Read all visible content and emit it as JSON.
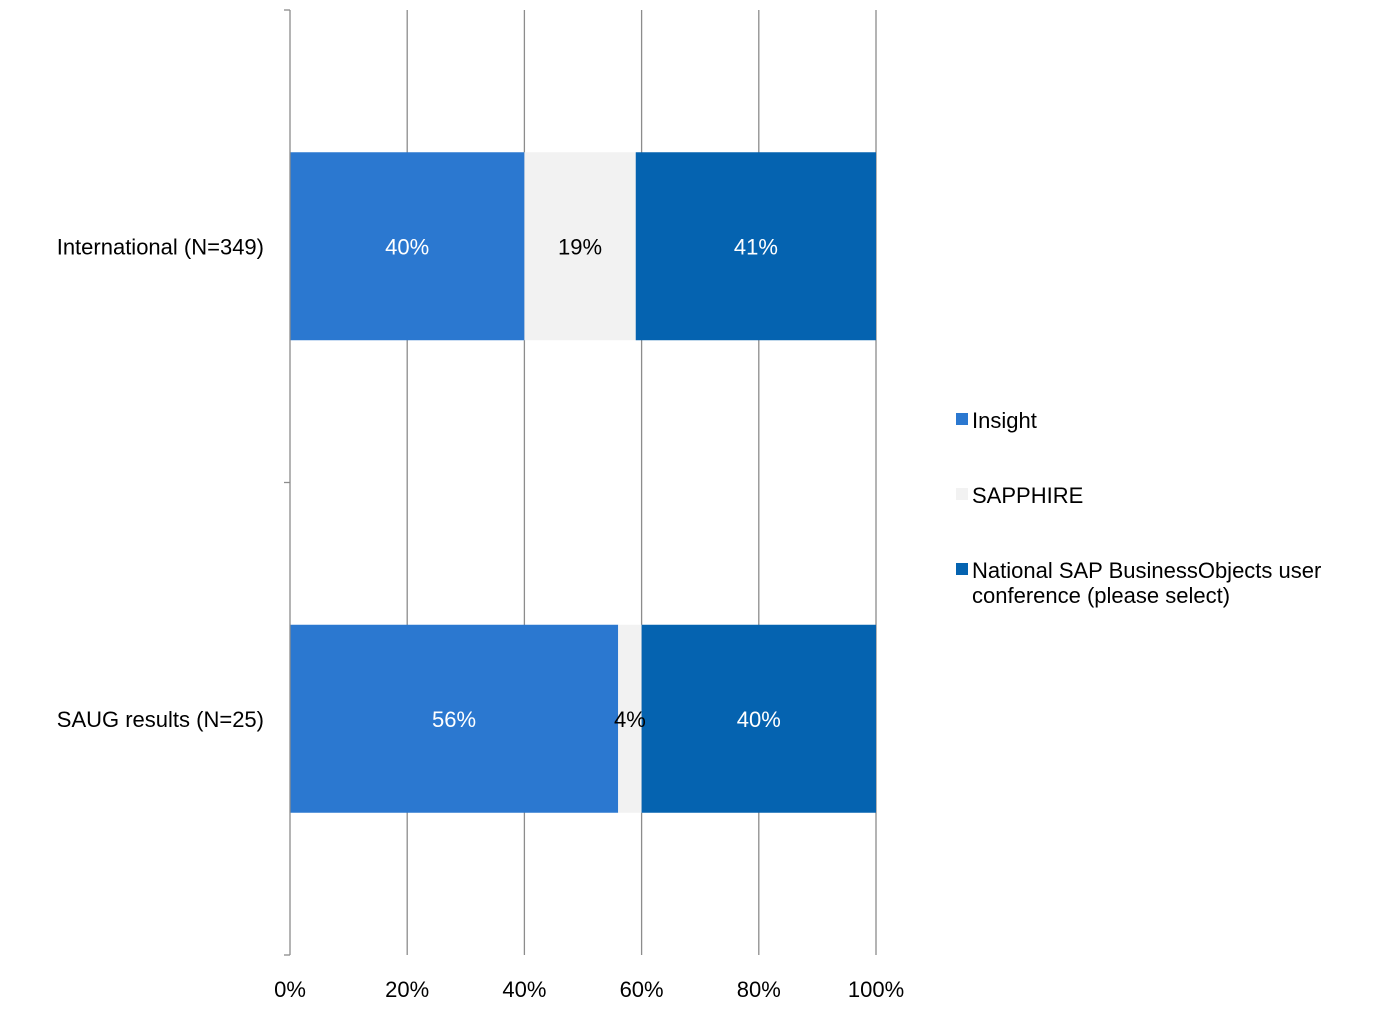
{
  "chart_data": {
    "type": "bar",
    "orientation": "horizontal",
    "stacked": "percent",
    "categories": [
      "International (N=349)",
      "SAUG results (N=25)"
    ],
    "series": [
      {
        "name": "Insight",
        "color": "#2b78d0",
        "values": [
          40,
          56
        ],
        "labels": [
          "40%",
          "56%"
        ],
        "label_color": "#ffffff"
      },
      {
        "name": "SAPPHIRE",
        "color": "#f2f2f2",
        "values": [
          19,
          4
        ],
        "labels": [
          "19%",
          "4%"
        ],
        "label_color": "#000000"
      },
      {
        "name": "National SAP BusinessObjects user conference (please select)",
        "color": "#0563b0",
        "values": [
          41,
          40
        ],
        "labels": [
          "41%",
          "40%"
        ],
        "label_color": "#ffffff"
      }
    ],
    "xlim": [
      0,
      100
    ],
    "x_ticks": [
      0,
      20,
      40,
      60,
      80,
      100
    ],
    "x_tick_labels": [
      "0%",
      "20%",
      "40%",
      "60%",
      "80%",
      "100%"
    ],
    "grid": true,
    "legend": {
      "position": "right",
      "entries": [
        "Insight",
        "SAPPHIRE",
        "National SAP BusinessObjects user conference (please select)"
      ]
    }
  }
}
